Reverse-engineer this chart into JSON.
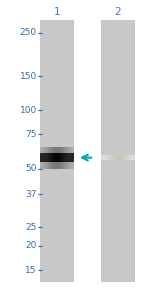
{
  "fig_bg_color": "#ffffff",
  "outer_bg_color": "#ffffff",
  "lane_bg_color": "#c8c8c8",
  "gap_color": "#ffffff",
  "lane1_label": "1",
  "lane2_label": "2",
  "lane1_label_color": "#4a7ab5",
  "lane2_label_color": "#4a7ab5",
  "mw_markers": [
    250,
    150,
    100,
    75,
    50,
    37,
    25,
    20,
    15
  ],
  "mw_label_color": "#3a6ea8",
  "mw_tick_color": "#3a6ea8",
  "band1_mw": 57,
  "band2_mw": 57,
  "arrow_color": "#00b0a8",
  "arrow_mw": 57,
  "font_size_labels": 6.5,
  "font_size_lane": 7.5,
  "figsize": [
    1.5,
    2.93
  ],
  "dpi": 100
}
